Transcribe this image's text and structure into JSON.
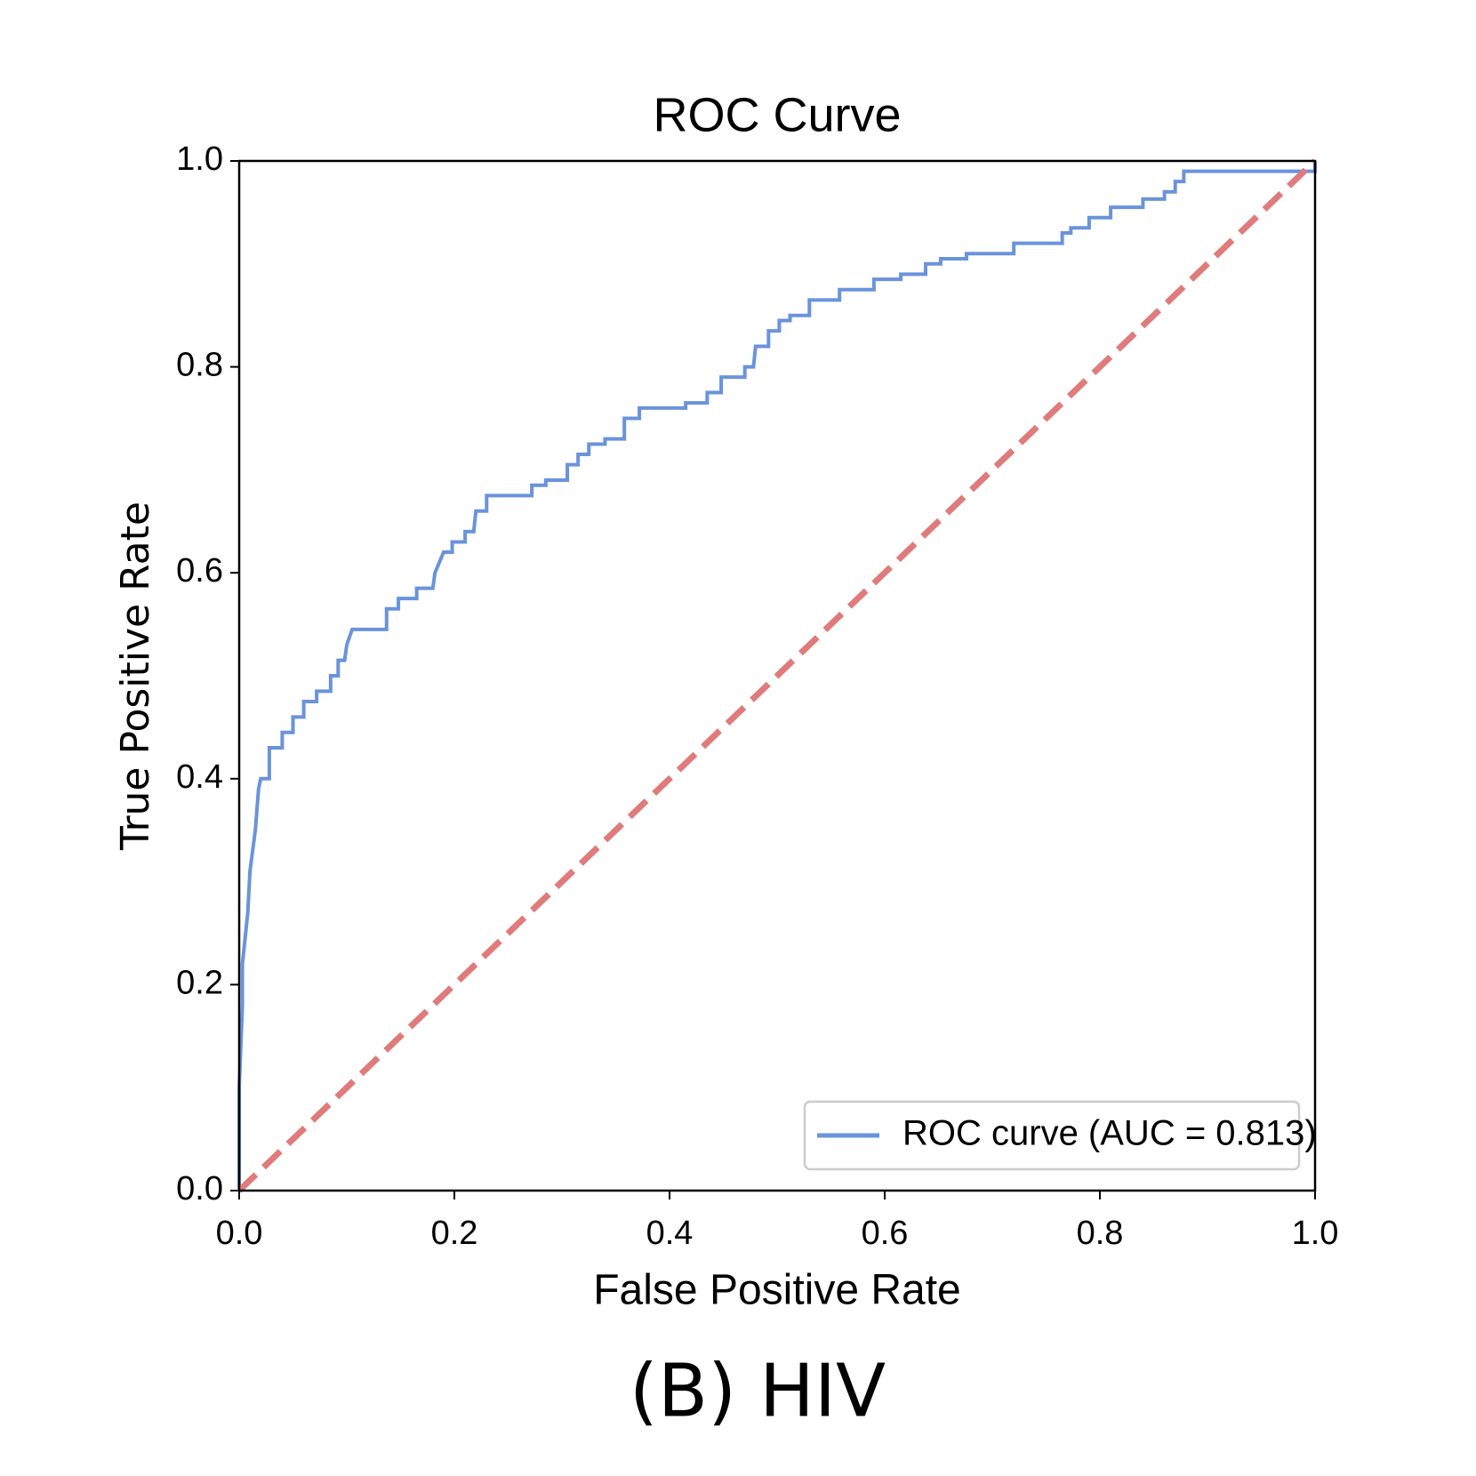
{
  "chart_data": {
    "type": "line",
    "title": "ROC Curve",
    "xlabel": "False Positive Rate",
    "ylabel": "True Positive Rate",
    "xlim": [
      0,
      1
    ],
    "ylim": [
      0,
      1
    ],
    "xticks": [
      {
        "value": 0,
        "label": "0.0"
      },
      0.2,
      0.4,
      0.6,
      0.8,
      {
        "value": 1,
        "label": "1.0"
      }
    ],
    "yticks": [
      {
        "value": 0,
        "label": "0.0"
      },
      0.2,
      0.4,
      0.6,
      0.8,
      {
        "value": 1,
        "label": "1.0"
      }
    ],
    "grid": false,
    "legend": "lower right",
    "series": [
      {
        "name": "ROC curve (AUC = 0.813)",
        "color": "#6a93db",
        "linestyle": "solid",
        "x": [
          0,
          0,
          0.003,
          0.003,
          0.008,
          0.01,
          0.015,
          0.018,
          0.02,
          0.028,
          0.028,
          0.04,
          0.04,
          0.05,
          0.05,
          0.06,
          0.06,
          0.072,
          0.072,
          0.085,
          0.085,
          0.092,
          0.092,
          0.098,
          0.1,
          0.105,
          0.137,
          0.137,
          0.148,
          0.148,
          0.165,
          0.165,
          0.18,
          0.182,
          0.19,
          0.198,
          0.198,
          0.21,
          0.21,
          0.218,
          0.22,
          0.23,
          0.23,
          0.272,
          0.272,
          0.285,
          0.285,
          0.305,
          0.305,
          0.315,
          0.315,
          0.325,
          0.325,
          0.34,
          0.34,
          0.358,
          0.358,
          0.372,
          0.372,
          0.415,
          0.415,
          0.435,
          0.435,
          0.448,
          0.448,
          0.47,
          0.47,
          0.478,
          0.48,
          0.492,
          0.492,
          0.502,
          0.502,
          0.512,
          0.512,
          0.53,
          0.53,
          0.558,
          0.558,
          0.59,
          0.59,
          0.615,
          0.615,
          0.638,
          0.638,
          0.652,
          0.652,
          0.676,
          0.676,
          0.72,
          0.72,
          0.765,
          0.765,
          0.773,
          0.773,
          0.79,
          0.79,
          0.81,
          0.81,
          0.84,
          0.84,
          0.86,
          0.86,
          0.87,
          0.87,
          0.878,
          0.878,
          1,
          1
        ],
        "values": [
          0,
          0.1,
          0.18,
          0.22,
          0.27,
          0.31,
          0.35,
          0.39,
          0.4,
          0.4,
          0.43,
          0.43,
          0.445,
          0.445,
          0.46,
          0.46,
          0.475,
          0.475,
          0.485,
          0.485,
          0.5,
          0.5,
          0.515,
          0.515,
          0.53,
          0.545,
          0.545,
          0.565,
          0.565,
          0.575,
          0.575,
          0.585,
          0.585,
          0.6,
          0.62,
          0.62,
          0.63,
          0.63,
          0.64,
          0.64,
          0.66,
          0.66,
          0.675,
          0.675,
          0.685,
          0.685,
          0.69,
          0.69,
          0.705,
          0.705,
          0.715,
          0.715,
          0.725,
          0.725,
          0.73,
          0.73,
          0.75,
          0.75,
          0.76,
          0.76,
          0.765,
          0.765,
          0.775,
          0.775,
          0.79,
          0.79,
          0.8,
          0.8,
          0.82,
          0.82,
          0.835,
          0.835,
          0.845,
          0.845,
          0.85,
          0.85,
          0.865,
          0.865,
          0.875,
          0.875,
          0.885,
          0.885,
          0.89,
          0.89,
          0.9,
          0.9,
          0.905,
          0.905,
          0.91,
          0.91,
          0.92,
          0.92,
          0.93,
          0.93,
          0.935,
          0.935,
          0.945,
          0.945,
          0.955,
          0.955,
          0.963,
          0.963,
          0.97,
          0.97,
          0.98,
          0.98,
          0.99,
          0.99,
          1
        ]
      },
      {
        "color": "#e07b7b",
        "linestyle": "dashed",
        "x": [
          0,
          1
        ],
        "values": [
          0,
          1
        ]
      }
    ]
  },
  "caption": "(B) HIV"
}
